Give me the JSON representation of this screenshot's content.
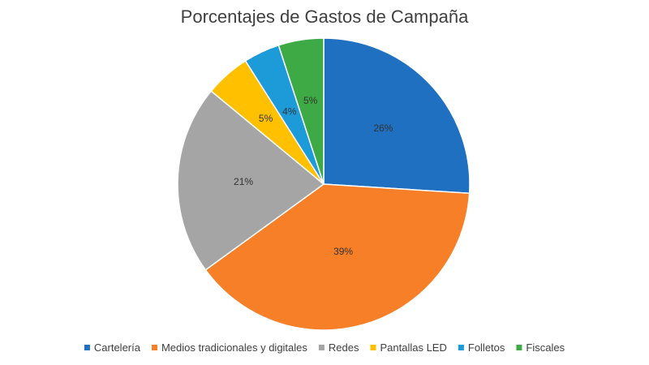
{
  "chart_data": {
    "type": "pie",
    "title": "Porcentajes de Gastos de Campaña",
    "categories": [
      "Cartelería",
      "Medios tradicionales y digitales",
      "Redes",
      "Pantallas LED",
      "Folletos",
      "Fiscales"
    ],
    "values": [
      26,
      39,
      21,
      5,
      4,
      5
    ],
    "data_labels": [
      "26%",
      "39%",
      "21%",
      "5%",
      "4%",
      "5%"
    ],
    "colors": [
      "#1F70C1",
      "#F77F27",
      "#A5A5A5",
      "#FFC000",
      "#1C9BD8",
      "#3DAA45"
    ],
    "legend": {
      "position": "bottom"
    },
    "start_angle": "top",
    "direction": "clockwise"
  }
}
